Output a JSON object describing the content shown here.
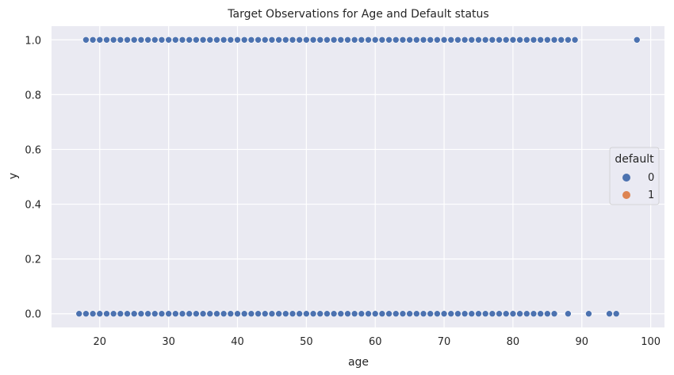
{
  "chart_data": {
    "type": "scatter",
    "title": "Target Observations for Age and Default status",
    "xlabel": "age",
    "ylabel": "y",
    "xlim": [
      13,
      102
    ],
    "ylim": [
      -0.05,
      1.05
    ],
    "x_ticks": [
      20,
      30,
      40,
      50,
      60,
      70,
      80,
      90,
      100
    ],
    "y_ticks": [
      0.0,
      0.2,
      0.4,
      0.6,
      0.8,
      1.0
    ],
    "x_tick_labels": [
      "20",
      "30",
      "40",
      "50",
      "60",
      "70",
      "80",
      "90",
      "100"
    ],
    "y_tick_labels": [
      "0.0",
      "0.2",
      "0.4",
      "0.6",
      "0.8",
      "1.0"
    ],
    "grid": true,
    "background": "#eaeaf2",
    "legend": {
      "title": "default",
      "placement": "center-right",
      "entries": [
        {
          "label": "0",
          "color": "#4c72b0"
        },
        {
          "label": "1",
          "color": "#dd8452"
        }
      ]
    },
    "series": [
      {
        "name": "0",
        "color": "#4c72b0",
        "points": [
          [
            18,
            1
          ],
          [
            19,
            1
          ],
          [
            20,
            1
          ],
          [
            21,
            1
          ],
          [
            22,
            1
          ],
          [
            23,
            1
          ],
          [
            24,
            1
          ],
          [
            25,
            1
          ],
          [
            26,
            1
          ],
          [
            27,
            1
          ],
          [
            28,
            1
          ],
          [
            29,
            1
          ],
          [
            30,
            1
          ],
          [
            31,
            1
          ],
          [
            32,
            1
          ],
          [
            33,
            1
          ],
          [
            34,
            1
          ],
          [
            35,
            1
          ],
          [
            36,
            1
          ],
          [
            37,
            1
          ],
          [
            38,
            1
          ],
          [
            39,
            1
          ],
          [
            40,
            1
          ],
          [
            41,
            1
          ],
          [
            42,
            1
          ],
          [
            43,
            1
          ],
          [
            44,
            1
          ],
          [
            45,
            1
          ],
          [
            46,
            1
          ],
          [
            47,
            1
          ],
          [
            48,
            1
          ],
          [
            49,
            1
          ],
          [
            50,
            1
          ],
          [
            51,
            1
          ],
          [
            52,
            1
          ],
          [
            53,
            1
          ],
          [
            54,
            1
          ],
          [
            55,
            1
          ],
          [
            56,
            1
          ],
          [
            57,
            1
          ],
          [
            58,
            1
          ],
          [
            59,
            1
          ],
          [
            60,
            1
          ],
          [
            61,
            1
          ],
          [
            62,
            1
          ],
          [
            63,
            1
          ],
          [
            64,
            1
          ],
          [
            65,
            1
          ],
          [
            66,
            1
          ],
          [
            67,
            1
          ],
          [
            68,
            1
          ],
          [
            69,
            1
          ],
          [
            70,
            1
          ],
          [
            71,
            1
          ],
          [
            72,
            1
          ],
          [
            73,
            1
          ],
          [
            74,
            1
          ],
          [
            75,
            1
          ],
          [
            76,
            1
          ],
          [
            77,
            1
          ],
          [
            78,
            1
          ],
          [
            79,
            1
          ],
          [
            80,
            1
          ],
          [
            81,
            1
          ],
          [
            82,
            1
          ],
          [
            83,
            1
          ],
          [
            84,
            1
          ],
          [
            85,
            1
          ],
          [
            86,
            1
          ],
          [
            87,
            1
          ],
          [
            88,
            1
          ],
          [
            89,
            1
          ],
          [
            98,
            1
          ],
          [
            17,
            0
          ],
          [
            18,
            0
          ],
          [
            19,
            0
          ],
          [
            20,
            0
          ],
          [
            21,
            0
          ],
          [
            22,
            0
          ],
          [
            23,
            0
          ],
          [
            24,
            0
          ],
          [
            25,
            0
          ],
          [
            26,
            0
          ],
          [
            27,
            0
          ],
          [
            28,
            0
          ],
          [
            29,
            0
          ],
          [
            30,
            0
          ],
          [
            31,
            0
          ],
          [
            32,
            0
          ],
          [
            33,
            0
          ],
          [
            34,
            0
          ],
          [
            35,
            0
          ],
          [
            36,
            0
          ],
          [
            37,
            0
          ],
          [
            38,
            0
          ],
          [
            39,
            0
          ],
          [
            40,
            0
          ],
          [
            41,
            0
          ],
          [
            42,
            0
          ],
          [
            43,
            0
          ],
          [
            44,
            0
          ],
          [
            45,
            0
          ],
          [
            46,
            0
          ],
          [
            47,
            0
          ],
          [
            48,
            0
          ],
          [
            49,
            0
          ],
          [
            50,
            0
          ],
          [
            51,
            0
          ],
          [
            52,
            0
          ],
          [
            53,
            0
          ],
          [
            54,
            0
          ],
          [
            55,
            0
          ],
          [
            56,
            0
          ],
          [
            57,
            0
          ],
          [
            58,
            0
          ],
          [
            59,
            0
          ],
          [
            60,
            0
          ],
          [
            61,
            0
          ],
          [
            62,
            0
          ],
          [
            63,
            0
          ],
          [
            64,
            0
          ],
          [
            65,
            0
          ],
          [
            66,
            0
          ],
          [
            67,
            0
          ],
          [
            68,
            0
          ],
          [
            69,
            0
          ],
          [
            70,
            0
          ],
          [
            71,
            0
          ],
          [
            72,
            0
          ],
          [
            73,
            0
          ],
          [
            74,
            0
          ],
          [
            75,
            0
          ],
          [
            76,
            0
          ],
          [
            77,
            0
          ],
          [
            78,
            0
          ],
          [
            79,
            0
          ],
          [
            80,
            0
          ],
          [
            81,
            0
          ],
          [
            82,
            0
          ],
          [
            83,
            0
          ],
          [
            84,
            0
          ],
          [
            85,
            0
          ],
          [
            86,
            0
          ],
          [
            88,
            0
          ],
          [
            91,
            0
          ],
          [
            94,
            0
          ],
          [
            95,
            0
          ]
        ]
      },
      {
        "name": "1",
        "color": "#dd8452",
        "points": []
      }
    ]
  }
}
